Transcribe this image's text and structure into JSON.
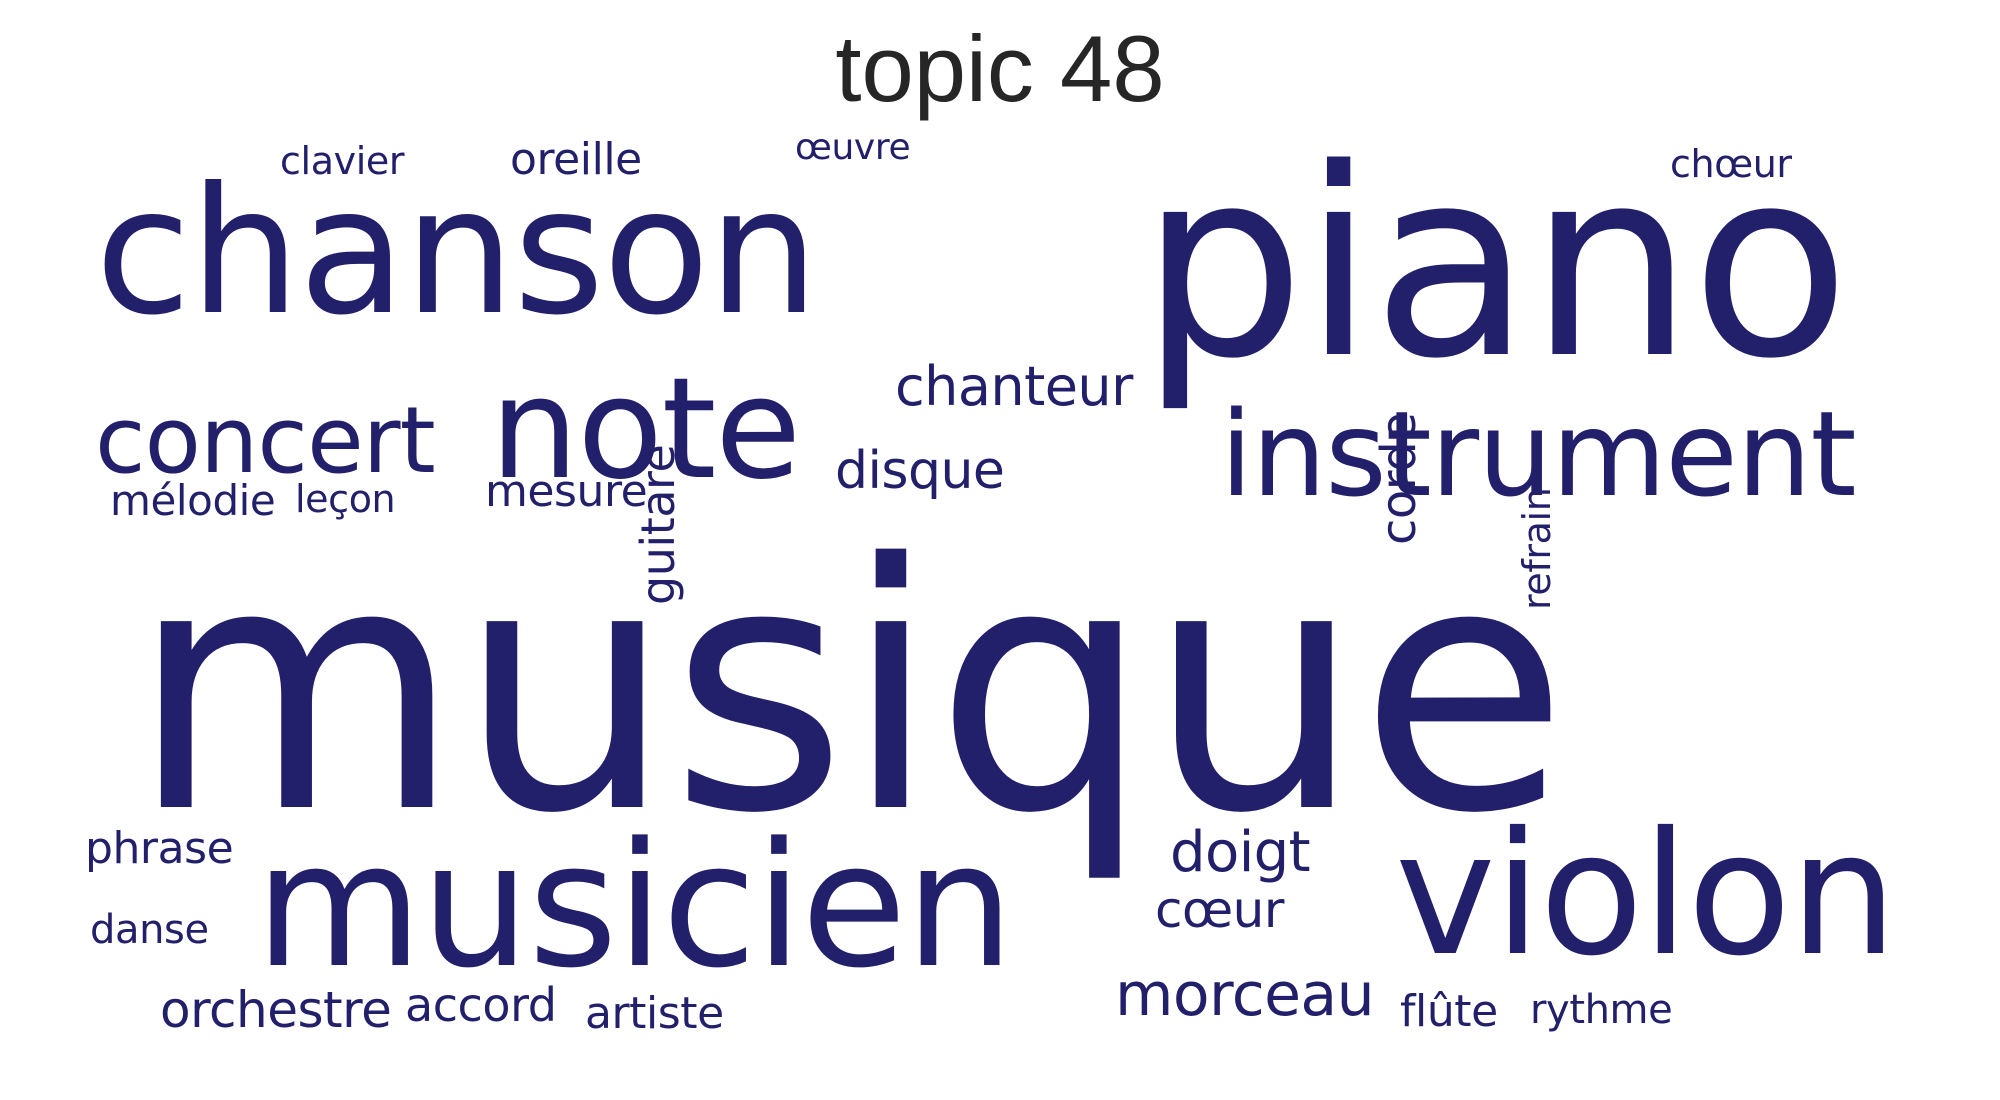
{
  "title": "topic 48",
  "colors": {
    "words": "#23206b",
    "title": "#262626",
    "background": "#ffffff"
  },
  "words": [
    {
      "text": "musique",
      "orientation": "horizontal"
    },
    {
      "text": "piano",
      "orientation": "horizontal"
    },
    {
      "text": "chanson",
      "orientation": "horizontal"
    },
    {
      "text": "musicien",
      "orientation": "horizontal"
    },
    {
      "text": "violon",
      "orientation": "horizontal"
    },
    {
      "text": "note",
      "orientation": "horizontal"
    },
    {
      "text": "instrument",
      "orientation": "horizontal"
    },
    {
      "text": "concert",
      "orientation": "horizontal"
    },
    {
      "text": "morceau",
      "orientation": "horizontal"
    },
    {
      "text": "chanteur",
      "orientation": "horizontal"
    },
    {
      "text": "doigt",
      "orientation": "horizontal"
    },
    {
      "text": "disque",
      "orientation": "horizontal"
    },
    {
      "text": "orchestre",
      "orientation": "horizontal"
    },
    {
      "text": "corde",
      "orientation": "vertical"
    },
    {
      "text": "guitare",
      "orientation": "vertical"
    },
    {
      "text": "cœur",
      "orientation": "horizontal"
    },
    {
      "text": "mesure",
      "orientation": "horizontal"
    },
    {
      "text": "oreille",
      "orientation": "horizontal"
    },
    {
      "text": "accord",
      "orientation": "horizontal"
    },
    {
      "text": "artiste",
      "orientation": "horizontal"
    },
    {
      "text": "phrase",
      "orientation": "horizontal"
    },
    {
      "text": "refrain",
      "orientation": "vertical"
    },
    {
      "text": "mélodie",
      "orientation": "horizontal"
    },
    {
      "text": "flûte",
      "orientation": "horizontal"
    },
    {
      "text": "rythme",
      "orientation": "horizontal"
    },
    {
      "text": "danse",
      "orientation": "horizontal"
    },
    {
      "text": "leçon",
      "orientation": "horizontal"
    },
    {
      "text": "clavier",
      "orientation": "horizontal"
    },
    {
      "text": "chœur",
      "orientation": "horizontal"
    },
    {
      "text": "œuvre",
      "orientation": "horizontal"
    }
  ]
}
